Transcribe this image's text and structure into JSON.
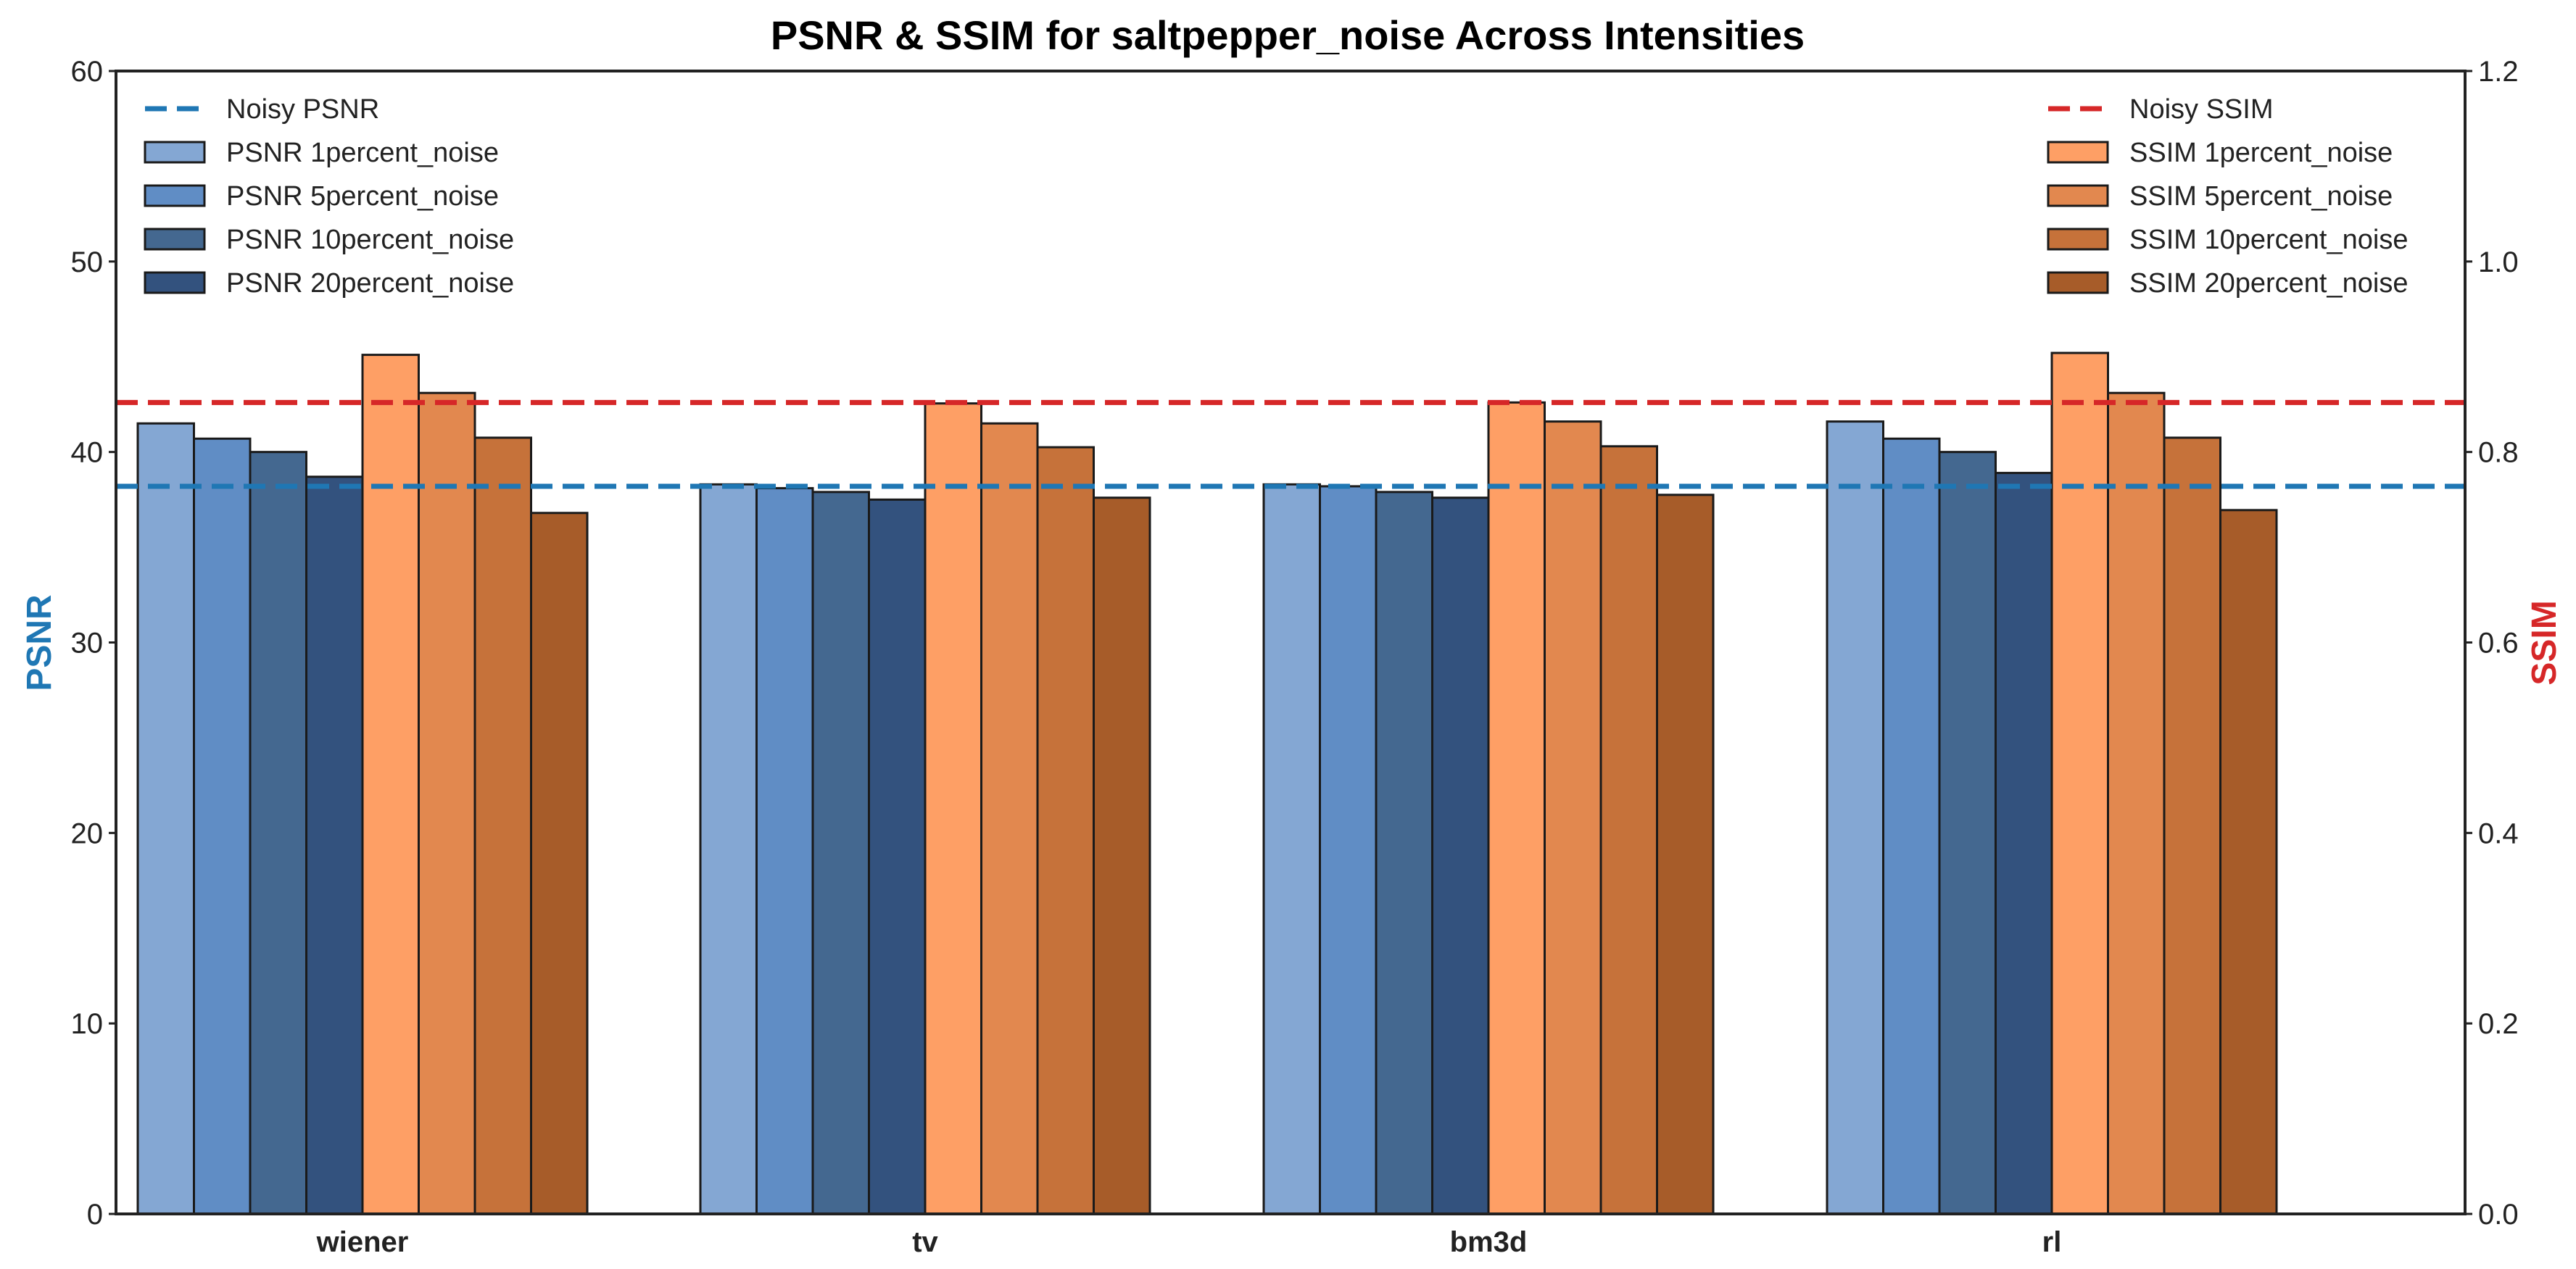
{
  "chart_data": {
    "type": "bar",
    "title": "PSNR & SSIM for saltpepper_noise Across Intensities",
    "categories": [
      "wiener",
      "tv",
      "bm3d",
      "rl"
    ],
    "y_left": {
      "label": "PSNR",
      "ylim": [
        0,
        60
      ],
      "ticks": [
        "0",
        "10",
        "20",
        "30",
        "40",
        "50",
        "60"
      ]
    },
    "y_right": {
      "label": "SSIM",
      "ylim": [
        0.0,
        1.2
      ],
      "ticks": [
        "0.0",
        "0.2",
        "0.4",
        "0.6",
        "0.8",
        "1.0",
        "1.2"
      ]
    },
    "psnr_series": [
      {
        "name": "PSNR 1percent_noise",
        "values": [
          41.5,
          38.3,
          38.3,
          41.6
        ],
        "color": "#84a7d3"
      },
      {
        "name": "PSNR 5percent_noise",
        "values": [
          40.7,
          38.1,
          38.2,
          40.7
        ],
        "color": "#608dc5"
      },
      {
        "name": "PSNR 10percent_noise",
        "values": [
          40.0,
          37.9,
          37.9,
          40.0
        ],
        "color": "#446890"
      },
      {
        "name": "PSNR 20percent_noise",
        "values": [
          38.7,
          37.5,
          37.6,
          38.9
        ],
        "color": "#33527e"
      }
    ],
    "ssim_series": [
      {
        "name": "SSIM 1percent_noise",
        "values": [
          0.902,
          0.851,
          0.852,
          0.904
        ],
        "color": "#fe9f65"
      },
      {
        "name": "SSIM 5percent_noise",
        "values": [
          0.862,
          0.83,
          0.832,
          0.862
        ],
        "color": "#e2884f"
      },
      {
        "name": "SSIM 10percent_noise",
        "values": [
          0.815,
          0.805,
          0.806,
          0.815
        ],
        "color": "#c6723a"
      },
      {
        "name": "SSIM 20percent_noise",
        "values": [
          0.736,
          0.752,
          0.755,
          0.739
        ],
        "color": "#a75c29"
      }
    ],
    "reference_lines": [
      {
        "name": "Noisy PSNR",
        "axis": "left",
        "value": 38.2,
        "color": "#1f77b4"
      },
      {
        "name": "Noisy SSIM",
        "axis": "right",
        "value": 0.852,
        "color": "#d62728"
      }
    ],
    "legend_left": "top-left",
    "legend_right": "top-right",
    "grid": false
  }
}
